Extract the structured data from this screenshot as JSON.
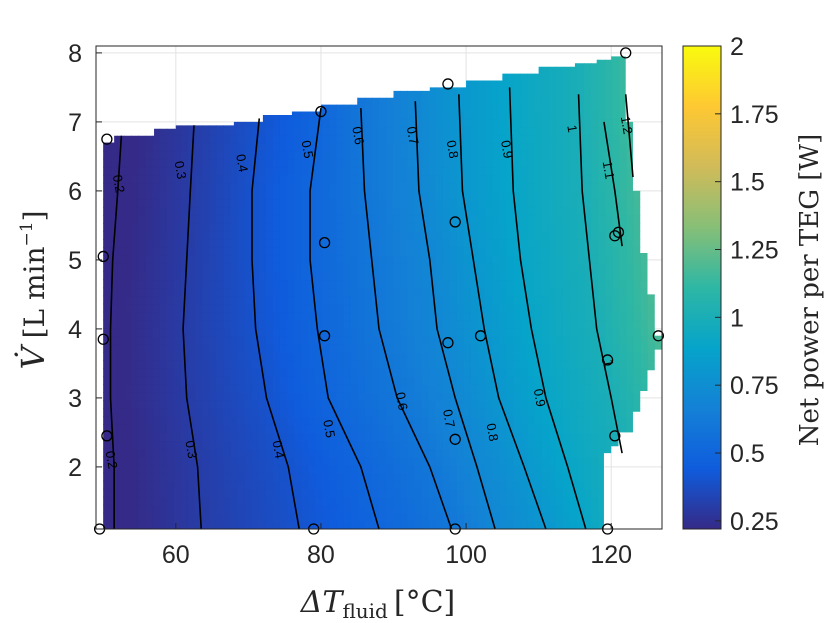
{
  "chart_data": {
    "type": "heatmap",
    "title": "",
    "xlabel": "ΔT",
    "xlabel_sub": "fluid",
    "xlabel_unit": "[°C]",
    "ylabel": "V̇",
    "ylabel_unit": "[L min",
    "ylabel_exp": "−1",
    "ylabel_close": "]",
    "xlim": [
      49,
      127
    ],
    "ylim": [
      1.1,
      8.1
    ],
    "xticks": [
      60,
      80,
      100,
      120
    ],
    "yticks": [
      2,
      3,
      4,
      5,
      6,
      7,
      8
    ],
    "grid": true,
    "colorbar": {
      "label": "Net power per TEG [W]",
      "range": [
        0.22,
        2.0
      ],
      "ticks": [
        0.25,
        0.5,
        0.75,
        1,
        1.25,
        1.5,
        1.75,
        2
      ],
      "tick_labels": [
        "0.25",
        "0.5",
        "0.75",
        "1",
        "1.25",
        "1.5",
        "1.75",
        "2"
      ],
      "colormap": "parula"
    },
    "data_region_top_edge": [
      [
        50,
        6.7
      ],
      [
        51.5,
        6.8
      ],
      [
        57,
        6.9
      ],
      [
        60,
        6.95
      ],
      [
        68,
        7.0
      ],
      [
        72,
        7.1
      ],
      [
        76,
        7.15
      ],
      [
        80,
        7.25
      ],
      [
        85,
        7.35
      ],
      [
        90,
        7.45
      ],
      [
        95,
        7.5
      ],
      [
        100,
        7.6
      ],
      [
        105,
        7.7
      ],
      [
        110,
        7.8
      ],
      [
        115,
        7.85
      ],
      [
        118,
        7.9
      ],
      [
        120,
        7.95
      ],
      [
        122,
        8.0
      ]
    ],
    "data_region_right_edge": [
      [
        122,
        8.0
      ],
      [
        122,
        7.3
      ],
      [
        123,
        7.0
      ],
      [
        123,
        6.4
      ],
      [
        124,
        6.0
      ],
      [
        124,
        5.5
      ],
      [
        125,
        5.1
      ],
      [
        125,
        4.7
      ],
      [
        126,
        4.5
      ],
      [
        126,
        4.1
      ],
      [
        127,
        3.9
      ],
      [
        126,
        3.7
      ],
      [
        125,
        3.4
      ],
      [
        124,
        3.1
      ],
      [
        123,
        2.8
      ],
      [
        121,
        2.5
      ],
      [
        120,
        2.3
      ],
      [
        119,
        2.2
      ],
      [
        119,
        1.1
      ]
    ],
    "contour_lines": [
      {
        "level": 0.2,
        "label": "0.2",
        "points": [
          [
            51.5,
            1.1
          ],
          [
            51.5,
            2.0
          ],
          [
            51.0,
            3.0
          ],
          [
            51.0,
            4.0
          ],
          [
            51.3,
            5.0
          ],
          [
            52.0,
            6.0
          ],
          [
            52.5,
            6.8
          ]
        ],
        "label_positions": [
          [
            51.0,
            2.1
          ],
          [
            52.0,
            6.1
          ]
        ]
      },
      {
        "level": 0.3,
        "label": "0.3",
        "points": [
          [
            63.5,
            1.1
          ],
          [
            63.0,
            2.0
          ],
          [
            61.5,
            3.0
          ],
          [
            61.0,
            4.0
          ],
          [
            61.5,
            5.0
          ],
          [
            62.0,
            6.0
          ],
          [
            62.5,
            6.95
          ]
        ],
        "label_positions": [
          [
            62.0,
            2.25
          ],
          [
            60.5,
            6.3
          ]
        ]
      },
      {
        "level": 0.4,
        "label": "0.4",
        "points": [
          [
            77.0,
            1.1
          ],
          [
            75.5,
            2.0
          ],
          [
            72.5,
            3.0
          ],
          [
            71.0,
            4.0
          ],
          [
            70.5,
            5.0
          ],
          [
            70.5,
            6.0
          ],
          [
            71.5,
            7.05
          ]
        ],
        "label_positions": [
          [
            74.0,
            2.25
          ],
          [
            69.0,
            6.4
          ]
        ]
      },
      {
        "level": 0.5,
        "label": "0.5",
        "points": [
          [
            88.0,
            1.1
          ],
          [
            85.5,
            2.0
          ],
          [
            81.0,
            3.0
          ],
          [
            79.5,
            4.0
          ],
          [
            78.5,
            5.0
          ],
          [
            78.5,
            6.0
          ],
          [
            80.0,
            7.2
          ]
        ],
        "label_positions": [
          [
            81.0,
            2.55
          ],
          [
            78.0,
            6.6
          ]
        ]
      },
      {
        "level": 0.6,
        "label": "0.6",
        "points": [
          [
            98.0,
            1.1
          ],
          [
            95.0,
            2.0
          ],
          [
            90.5,
            3.0
          ],
          [
            88.0,
            4.0
          ],
          [
            87.0,
            5.0
          ],
          [
            86.0,
            6.0
          ],
          [
            85.5,
            7.2
          ]
        ],
        "label_positions": [
          [
            91.0,
            2.95
          ],
          [
            85.0,
            6.8
          ]
        ]
      },
      {
        "level": 0.7,
        "label": "0.7",
        "points": [
          [
            104.0,
            1.1
          ],
          [
            101.5,
            2.0
          ],
          [
            98.5,
            3.0
          ],
          [
            96.0,
            4.0
          ],
          [
            95.0,
            5.0
          ],
          [
            93.5,
            6.0
          ],
          [
            93.0,
            7.3
          ]
        ],
        "label_positions": [
          [
            97.5,
            2.7
          ],
          [
            92.5,
            6.8
          ]
        ]
      },
      {
        "level": 0.8,
        "label": "0.8",
        "points": [
          [
            111.0,
            1.1
          ],
          [
            108.0,
            2.0
          ],
          [
            104.5,
            3.0
          ],
          [
            102.5,
            4.0
          ],
          [
            101.0,
            5.0
          ],
          [
            99.5,
            6.0
          ],
          [
            99.0,
            7.4
          ]
        ],
        "label_positions": [
          [
            103.5,
            2.5
          ],
          [
            98.0,
            6.6
          ]
        ]
      },
      {
        "level": 0.9,
        "label": "0.9",
        "points": [
          [
            116.5,
            1.1
          ],
          [
            114.0,
            2.0
          ],
          [
            111.0,
            3.0
          ],
          [
            109.0,
            4.0
          ],
          [
            107.5,
            5.0
          ],
          [
            106.5,
            6.0
          ],
          [
            106.0,
            7.5
          ]
        ],
        "label_positions": [
          [
            110.0,
            3.0
          ],
          [
            105.5,
            6.6
          ]
        ]
      },
      {
        "level": 1.0,
        "label": "1",
        "points": [
          [
            121.5,
            2.2
          ],
          [
            120.0,
            3.0
          ],
          [
            118.0,
            4.0
          ],
          [
            117.0,
            5.0
          ],
          [
            116.0,
            6.0
          ],
          [
            115.5,
            7.4
          ]
        ],
        "label_positions": [
          [
            119.5,
            3.5
          ],
          [
            114.5,
            6.9
          ]
        ]
      },
      {
        "level": 1.1,
        "label": "1.1",
        "points": [
          [
            121.5,
            5.2
          ],
          [
            120.5,
            6.0
          ],
          [
            119.0,
            7.0
          ]
        ],
        "label_positions": [
          [
            119.5,
            6.3
          ]
        ]
      },
      {
        "level": 1.2,
        "label": "1.2",
        "points": [
          [
            123.0,
            6.2
          ],
          [
            122.5,
            6.8
          ],
          [
            122.0,
            7.4
          ]
        ],
        "label_positions": [
          [
            122.0,
            6.95
          ]
        ]
      }
    ],
    "measurement_points": [
      [
        49.5,
        1.1
      ],
      [
        50.5,
        2.45
      ],
      [
        50.0,
        3.85
      ],
      [
        50.0,
        5.05
      ],
      [
        50.5,
        6.75
      ],
      [
        79.0,
        1.1
      ],
      [
        80.5,
        3.9
      ],
      [
        80.5,
        5.25
      ],
      [
        80.0,
        7.15
      ],
      [
        98.5,
        1.1
      ],
      [
        98.5,
        2.4
      ],
      [
        97.5,
        3.8
      ],
      [
        98.5,
        5.55
      ],
      [
        97.5,
        7.55
      ],
      [
        119.5,
        1.1
      ],
      [
        120.5,
        2.45
      ],
      [
        119.5,
        3.55
      ],
      [
        120.5,
        5.35
      ],
      [
        121.0,
        5.4
      ],
      [
        126.5,
        3.9
      ],
      [
        122.0,
        8.0
      ],
      [
        102.0,
        3.9
      ]
    ]
  }
}
